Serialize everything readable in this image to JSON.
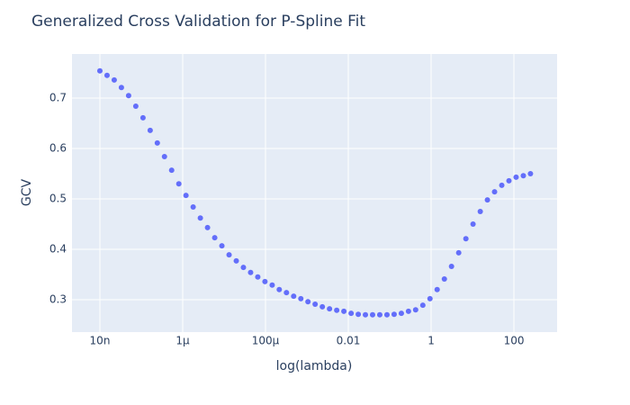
{
  "chart_data": {
    "type": "scatter",
    "title": "Generalized Cross Validation for P-Spline Fit",
    "x_label": "log(lambda)",
    "y_label": "GCV",
    "xscale": "log",
    "grid": true,
    "series": [
      {
        "name": "GCV",
        "color": "#636efa",
        "x": [
          1e-08,
          1.49e-08,
          2.22e-08,
          3.31e-08,
          4.94e-08,
          7.36e-08,
          1.1e-07,
          1.64e-07,
          2.44e-07,
          3.63e-07,
          5.41e-07,
          8.07e-07,
          1.2e-06,
          1.79e-06,
          2.67e-06,
          3.98e-06,
          5.94e-06,
          8.84e-06,
          1.32e-05,
          1.97e-05,
          2.93e-05,
          4.37e-05,
          6.51e-05,
          9.7e-05,
          0.000145,
          0.000215,
          0.000321,
          0.000479,
          0.000714,
          0.00106,
          0.00158,
          0.00236,
          0.00352,
          0.00525,
          0.00782,
          0.0117,
          0.0174,
          0.0259,
          0.0386,
          0.0575,
          0.0858,
          0.128,
          0.191,
          0.284,
          0.423,
          0.631,
          0.94,
          1.4,
          2.09,
          3.11,
          4.64,
          6.92,
          10.3,
          15.4,
          22.9,
          34.1,
          50.9,
          75.9,
          113,
          169,
          251
        ],
        "values": [
          0.754,
          0.745,
          0.736,
          0.721,
          0.705,
          0.684,
          0.661,
          0.636,
          0.611,
          0.584,
          0.557,
          0.53,
          0.507,
          0.484,
          0.462,
          0.443,
          0.423,
          0.407,
          0.389,
          0.377,
          0.364,
          0.354,
          0.345,
          0.336,
          0.329,
          0.32,
          0.314,
          0.307,
          0.302,
          0.296,
          0.291,
          0.286,
          0.282,
          0.279,
          0.277,
          0.273,
          0.271,
          0.27,
          0.27,
          0.27,
          0.27,
          0.271,
          0.273,
          0.277,
          0.28,
          0.289,
          0.302,
          0.32,
          0.341,
          0.366,
          0.393,
          0.421,
          0.45,
          0.475,
          0.498,
          0.514,
          0.527,
          0.536,
          0.543,
          0.546,
          0.55
        ]
      }
    ],
    "xlim": [
      2.12e-09,
      1104
    ],
    "ylim": [
      0.2357,
      0.7875
    ],
    "xticks": [
      {
        "value": 1e-08,
        "label": "10n"
      },
      {
        "value": 1e-06,
        "label": "1µ"
      },
      {
        "value": 0.0001,
        "label": "100µ"
      },
      0.01,
      1,
      100
    ],
    "yticks": [
      0.3,
      0.4,
      0.5,
      0.6,
      0.7
    ]
  }
}
